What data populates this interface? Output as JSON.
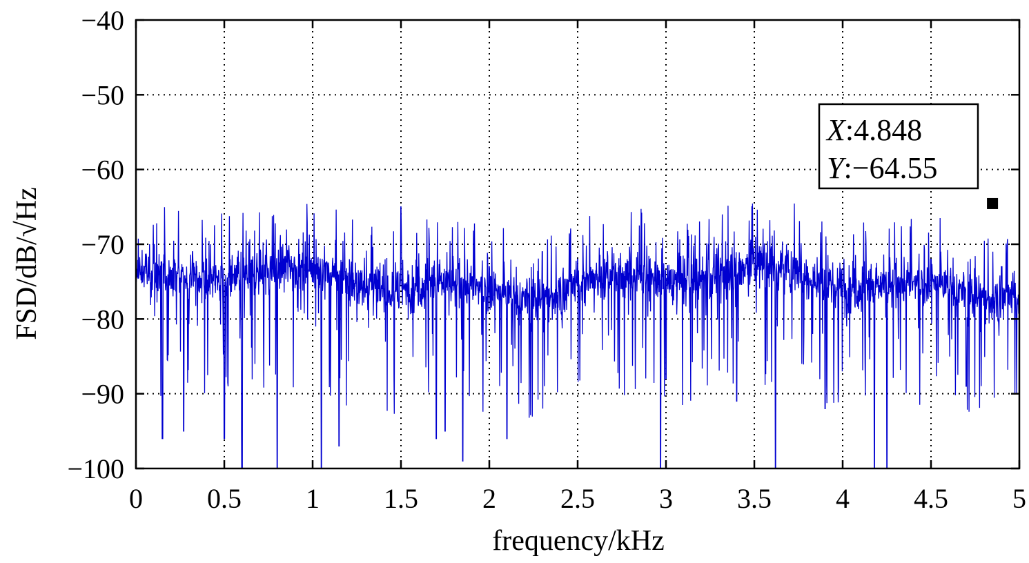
{
  "chart_data": {
    "type": "line",
    "xlabel": "frequency/kHz",
    "ylabel": "FSD/dB/√Hz",
    "xlim": [
      0,
      5
    ],
    "ylim": [
      -100,
      -40
    ],
    "xticks": [
      "0",
      "0.5",
      "1",
      "1.5",
      "2",
      "2.5",
      "3",
      "3.5",
      "4",
      "4.5",
      "5"
    ],
    "yticks": [
      "−40",
      "−50",
      "−60",
      "−70",
      "−80",
      "−90",
      "−100"
    ],
    "grid": true,
    "series": [
      {
        "color": "#0000d0",
        "description_points": {
          "x": [
            0.0,
            0.05,
            0.15,
            0.27,
            0.32,
            0.5,
            0.55,
            0.6,
            0.8,
            1.0,
            1.05,
            1.15,
            1.35,
            1.5,
            1.7,
            1.75,
            1.85,
            2.0,
            2.1,
            2.3,
            2.5,
            2.7,
            2.97,
            3.0,
            3.2,
            3.4,
            3.5,
            3.62,
            3.8,
            3.9,
            4.0,
            4.18,
            4.25,
            4.4,
            4.5,
            4.7,
            4.9,
            5.0
          ],
          "y": [
            -75,
            -73,
            -96,
            -95,
            -71,
            -96,
            -74,
            -100,
            -100,
            -75,
            -100,
            -97,
            -74,
            -65,
            -96,
            -95,
            -99,
            -73,
            -96,
            -71,
            -72,
            -73,
            -100,
            -88,
            -75,
            -91,
            -74,
            -100,
            -73,
            -92,
            -76,
            -100,
            -100,
            -75,
            -72,
            -89,
            -73,
            -75
          ]
        }
      }
    ],
    "datatip": {
      "x_label": "X",
      "x_value": "4.848",
      "y_label": "Y",
      "y_value": "−64.55",
      "x": 4.848,
      "y": -64.55
    }
  }
}
